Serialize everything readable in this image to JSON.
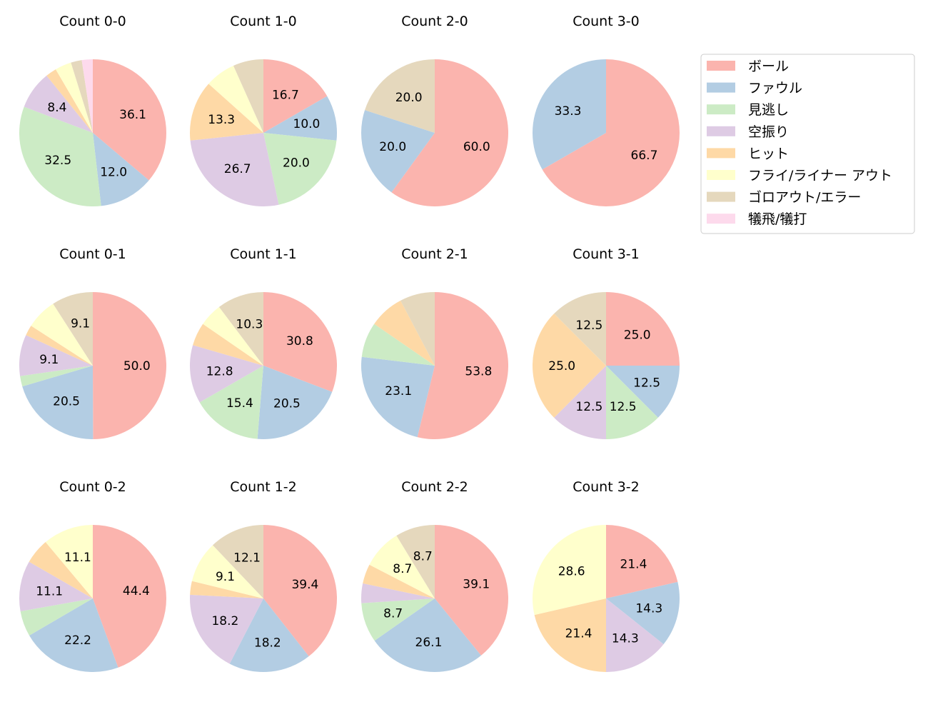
{
  "chart_data": {
    "type": "pie",
    "start_angle_deg": 90,
    "direction": "clockwise",
    "label_threshold_percent": 8,
    "legend": {
      "placement": "top-right",
      "entries": [
        "ボール",
        "ファウル",
        "見逃し",
        "空振り",
        "ヒット",
        "フライ/ライナー アウト",
        "ゴロアウト/エラー",
        "犠飛/犠打"
      ],
      "colors": [
        "#fbb4ae",
        "#b3cde3",
        "#ccebc5",
        "#decbe4",
        "#fed9a6",
        "#ffffcc",
        "#e5d8bd",
        "#fddaec"
      ]
    },
    "charts": [
      {
        "title": "Count 0-0",
        "values": [
          36.1,
          12.0,
          32.5,
          8.4,
          2.4,
          3.6,
          2.4,
          2.4
        ]
      },
      {
        "title": "Count 1-0",
        "values": [
          16.7,
          10.0,
          20.0,
          26.7,
          13.3,
          6.7,
          6.7,
          0
        ]
      },
      {
        "title": "Count 2-0",
        "values": [
          60.0,
          20.0,
          0,
          0,
          0,
          0,
          20.0,
          0
        ]
      },
      {
        "title": "Count 3-0",
        "values": [
          66.7,
          33.3,
          0,
          0,
          0,
          0,
          0,
          0
        ]
      },
      {
        "title": "Count 0-1",
        "values": [
          50.0,
          20.5,
          2.3,
          9.1,
          2.3,
          6.8,
          9.1,
          0
        ]
      },
      {
        "title": "Count 1-1",
        "values": [
          30.8,
          20.5,
          15.4,
          12.8,
          5.1,
          5.1,
          10.3,
          0
        ]
      },
      {
        "title": "Count 2-1",
        "values": [
          53.8,
          23.1,
          7.7,
          0,
          7.7,
          0,
          7.7,
          0
        ]
      },
      {
        "title": "Count 3-1",
        "values": [
          25.0,
          12.5,
          12.5,
          12.5,
          25.0,
          0,
          12.5,
          0
        ]
      },
      {
        "title": "Count 0-2",
        "values": [
          44.4,
          22.2,
          5.6,
          11.1,
          5.6,
          11.1,
          0,
          0
        ]
      },
      {
        "title": "Count 1-2",
        "values": [
          39.4,
          18.2,
          0,
          18.2,
          3.0,
          9.1,
          12.1,
          0
        ]
      },
      {
        "title": "Count 2-2",
        "values": [
          39.1,
          26.1,
          8.7,
          4.3,
          4.3,
          8.7,
          8.7,
          0
        ]
      },
      {
        "title": "Count 3-2",
        "values": [
          21.4,
          14.3,
          0,
          14.3,
          21.4,
          28.6,
          0,
          0
        ]
      }
    ]
  }
}
